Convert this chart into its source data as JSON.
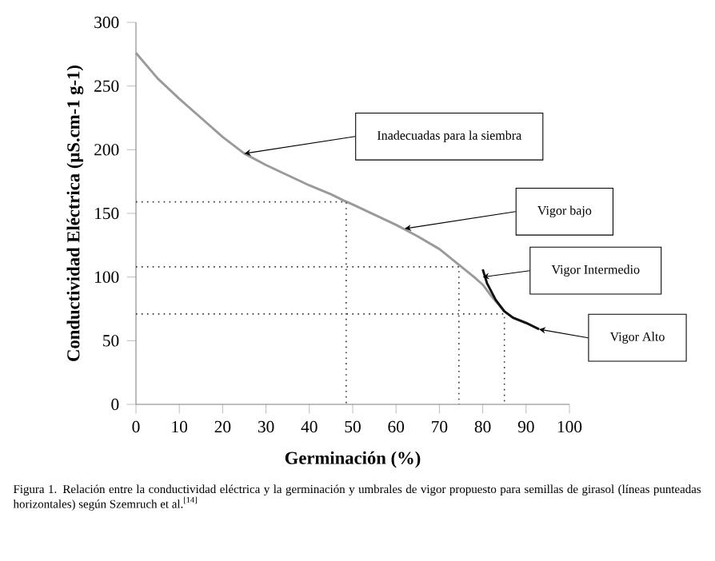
{
  "chart_data": {
    "type": "line",
    "xlabel": "Germinación (%)",
    "ylabel": "Conductividad Eléctrica (µS.cm-1 g-1)",
    "xlim": [
      0,
      100
    ],
    "xticks": [
      0,
      10,
      20,
      30,
      40,
      50,
      60,
      70,
      80,
      90,
      100
    ],
    "ylim": [
      0,
      300
    ],
    "yticks": [
      0,
      50,
      100,
      150,
      200,
      250,
      300
    ],
    "series": [
      {
        "color": "#9a9a9a",
        "x": [
          0,
          5,
          10,
          15,
          20,
          25,
          30,
          35,
          40,
          45,
          48,
          50,
          55,
          60,
          65,
          70,
          74,
          78,
          80,
          82,
          85,
          87,
          90,
          93
        ],
        "values": [
          276,
          256,
          240,
          225,
          210,
          197,
          188,
          180,
          172,
          165,
          160,
          157,
          149,
          141,
          132,
          122,
          111,
          100,
          94,
          85,
          73,
          68,
          64,
          59
        ]
      },
      {
        "color": "#111111",
        "x": [
          80,
          81,
          83,
          85,
          87,
          90,
          93
        ],
        "values": [
          106,
          95,
          82,
          73,
          68,
          64,
          59
        ]
      },
      {
        "color": "#333333",
        "line_style": "dotted",
        "x": [
          0,
          48.5,
          48.5
        ],
        "values": [
          159,
          159,
          0
        ]
      },
      {
        "color": "#333333",
        "line_style": "dotted",
        "x": [
          0,
          74.5,
          74.5
        ],
        "values": [
          108,
          108,
          0
        ]
      },
      {
        "color": "#333333",
        "line_style": "dotted",
        "x": [
          0,
          85,
          85
        ],
        "values": [
          71,
          71,
          0
        ]
      }
    ],
    "annotations": [
      "Inadecuadas para la siembra",
      "Vigor bajo",
      "Vigor Intermedio",
      "Vigor Alto",
      "Figura 1. Relación entre la conductividad eléctrica y la germinación y umbrales de vigor propuesto para semillas de girasol (líneas punteadas horizontales) según Szemruch et al.$^{[14]}$"
    ]
  }
}
